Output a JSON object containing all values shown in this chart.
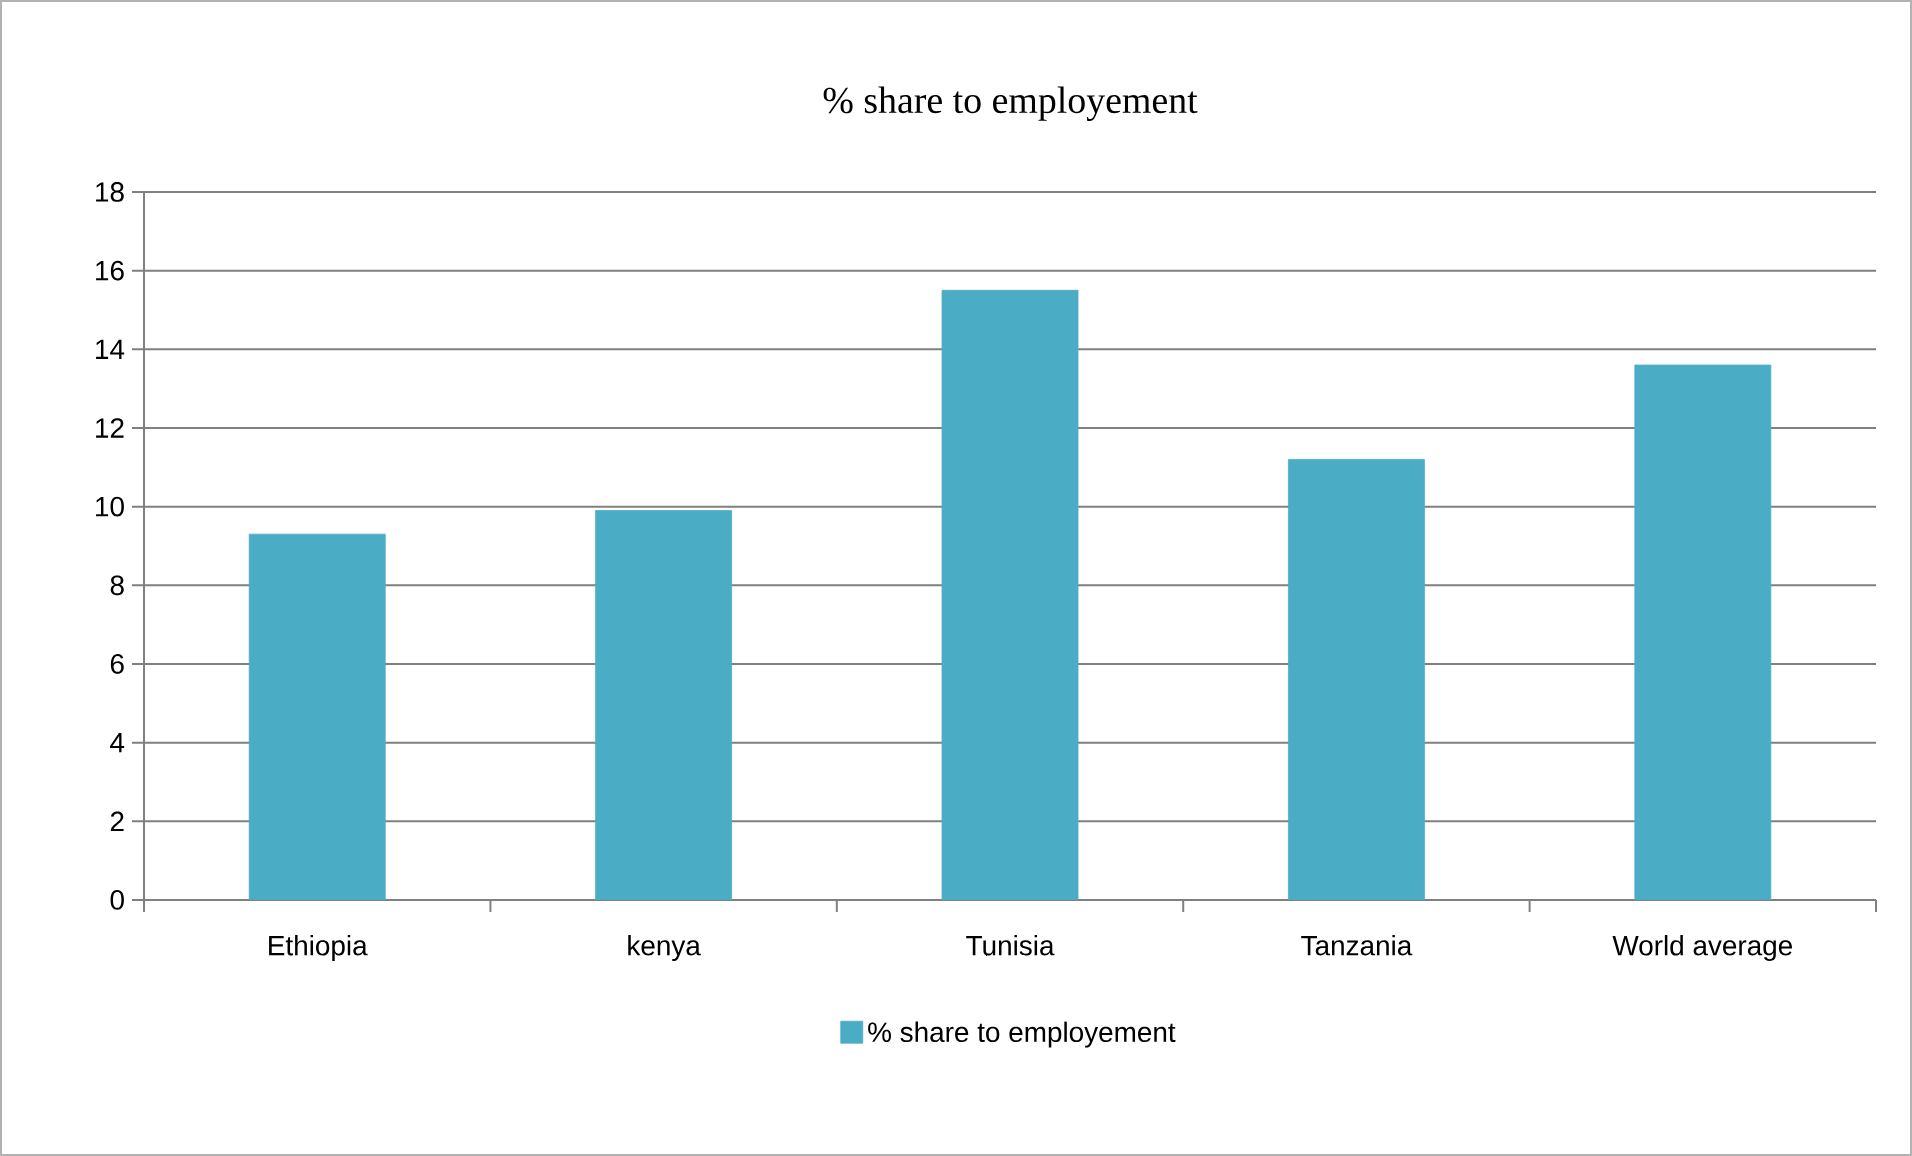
{
  "chart_data": {
    "type": "bar",
    "title": "% share to employement",
    "categories": [
      "Ethiopia",
      "kenya",
      "Tunisia",
      "Tanzania",
      "World average"
    ],
    "series": [
      {
        "name": "% share to employement",
        "color": "#4bacc6",
        "values": [
          9.3,
          9.9,
          15.5,
          11.2,
          13.6
        ]
      }
    ],
    "ylim": [
      0,
      18
    ],
    "yticks": [
      0,
      2,
      4,
      6,
      8,
      10,
      12,
      14,
      16,
      18
    ],
    "grid": "y",
    "legend": "bottom"
  }
}
